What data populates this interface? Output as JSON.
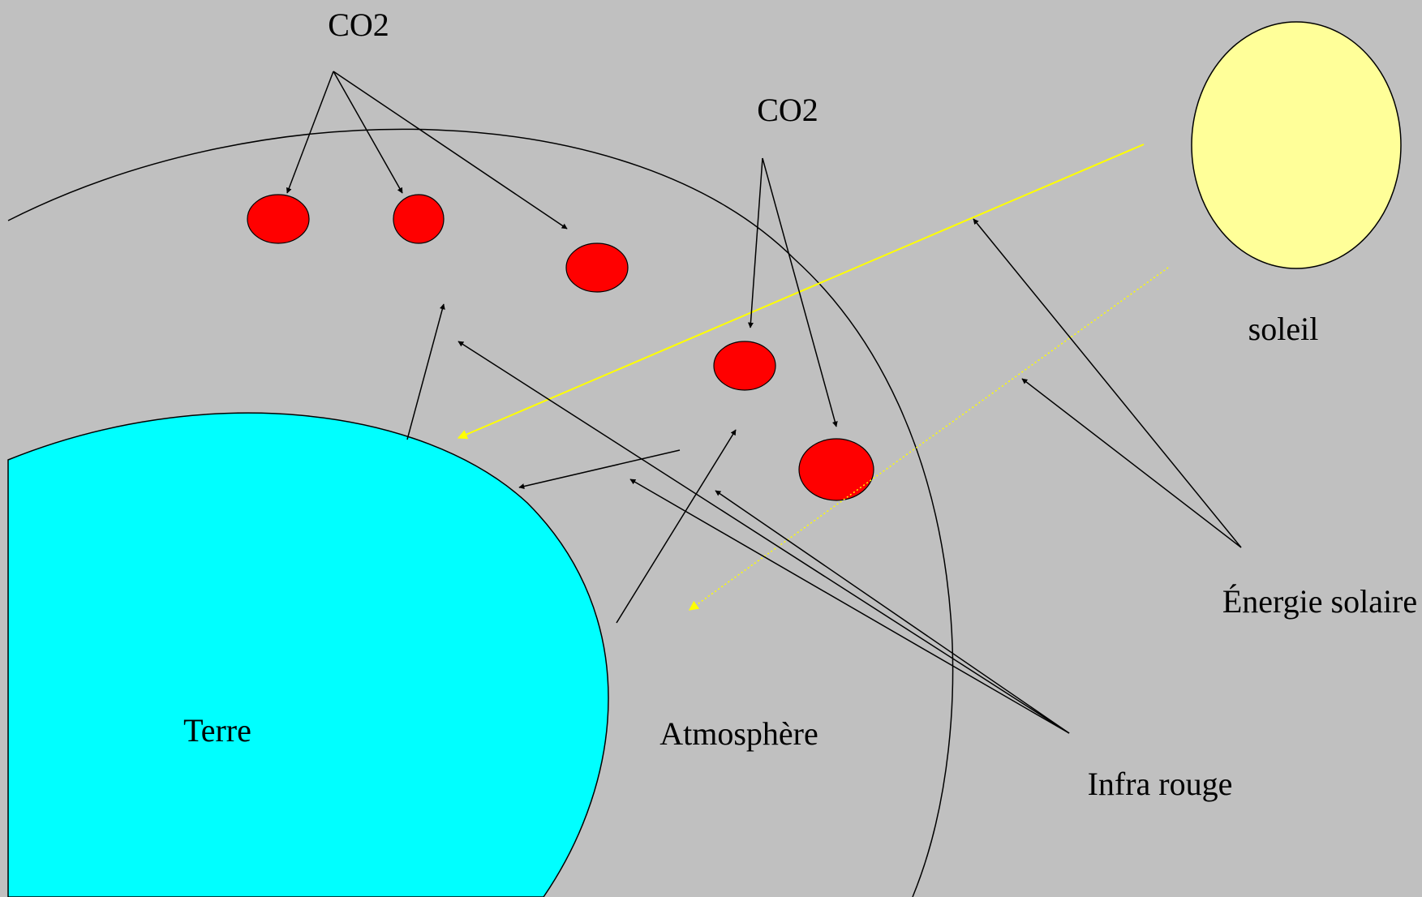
{
  "labels": {
    "co2_top": "CO2",
    "co2_mid": "CO2",
    "sun": "soleil",
    "solar_energy": "Énergie solaire",
    "earth": "Terre",
    "atmosphere": "Atmosphère",
    "infrared": "Infra rouge"
  },
  "colors": {
    "background": "#c0c0c0",
    "earth": "#00ffff",
    "sun": "#ffff99",
    "co2": "#ff0000",
    "solar_ray": "#ffff00",
    "line": "#000000"
  }
}
